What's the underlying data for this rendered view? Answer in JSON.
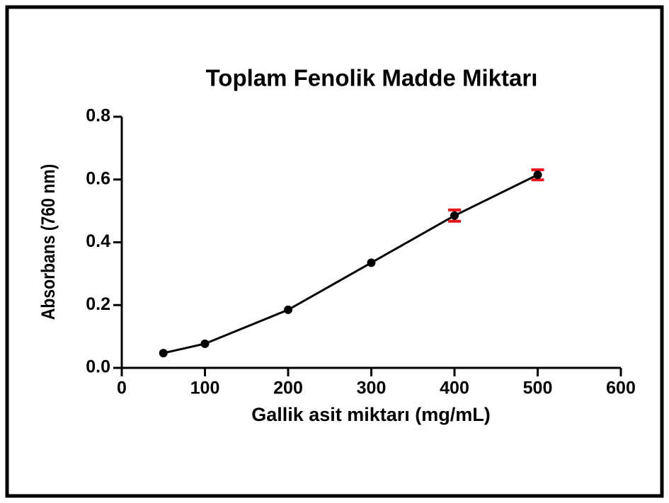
{
  "chart_data": {
    "type": "line",
    "title": "Toplam Fenolik Madde Miktarı",
    "xlabel": "Gallik asit miktarı (mg/mL)",
    "ylabel": "Absorbans (760 nm)",
    "x": [
      50,
      100,
      200,
      300,
      400,
      500
    ],
    "series": [
      {
        "name": null,
        "color": "#000000",
        "error_color": "#e8141c",
        "values": [
          0.047,
          0.077,
          0.185,
          0.335,
          0.485,
          0.615
        ],
        "errors": [
          null,
          null,
          null,
          null,
          0.018,
          0.016
        ]
      }
    ],
    "xlim": [
      0,
      600
    ],
    "xticks": [
      0,
      100,
      200,
      300,
      400,
      500,
      600
    ],
    "ylim": [
      0,
      0.8
    ],
    "yticks": [
      {
        "value": 0,
        "label": "0.0"
      },
      0.2,
      0.4,
      0.6,
      0.8
    ],
    "grid": false
  }
}
